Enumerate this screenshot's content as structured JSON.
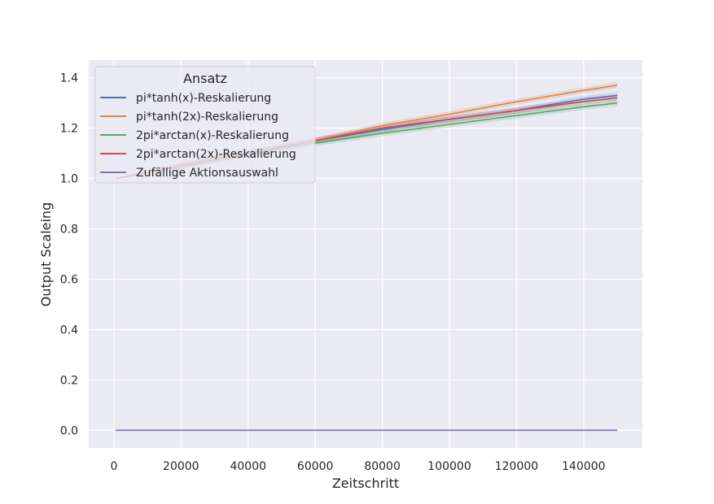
{
  "chart_data": {
    "type": "line",
    "title": "",
    "xlabel": "Zeitschritt",
    "ylabel": "Output Scaleing",
    "xlim": [
      -7500,
      157500
    ],
    "ylim": [
      -0.07,
      1.47
    ],
    "xticks": [
      0,
      20000,
      40000,
      60000,
      80000,
      100000,
      120000,
      140000
    ],
    "yticks": [
      0.0,
      0.2,
      0.4,
      0.6,
      0.8,
      1.0,
      1.2,
      1.4
    ],
    "xtick_labels": [
      "0",
      "20000",
      "40000",
      "60000",
      "80000",
      "100000",
      "120000",
      "140000"
    ],
    "ytick_labels": [
      "0.0",
      "0.2",
      "0.4",
      "0.6",
      "0.8",
      "1.0",
      "1.2",
      "1.4"
    ],
    "grid": true,
    "legend": {
      "title": "Ansatz",
      "position": "top-left"
    },
    "x": [
      500,
      20000,
      40000,
      60000,
      80000,
      100000,
      120000,
      140000,
      150000
    ],
    "series": [
      {
        "name": "pi*tanh(x)-Reskalierung",
        "color": "#4c72b0",
        "values": [
          1.0,
          1.05,
          1.1,
          1.15,
          1.195,
          1.235,
          1.27,
          1.315,
          1.33
        ],
        "band": 0.012
      },
      {
        "name": "pi*tanh(2x)-Reskalierung",
        "color": "#dd8452",
        "values": [
          1.0,
          1.05,
          1.1,
          1.15,
          1.21,
          1.255,
          1.305,
          1.35,
          1.37
        ],
        "band": 0.012
      },
      {
        "name": "2pi*arctan(x)-Reskalierung",
        "color": "#55a868",
        "values": [
          1.0,
          1.05,
          1.1,
          1.14,
          1.18,
          1.215,
          1.25,
          1.285,
          1.3
        ],
        "band": 0.012
      },
      {
        "name": "2pi*arctan(2x)-Reskalierung",
        "color": "#c44e52",
        "values": [
          1.0,
          1.05,
          1.1,
          1.15,
          1.2,
          1.235,
          1.27,
          1.305,
          1.32
        ],
        "band": 0.012
      },
      {
        "name": "Zufällige Aktionsauswahl",
        "color": "#8172b3",
        "values": [
          0.0,
          0.0,
          0.0,
          0.0,
          0.0,
          0.0,
          0.0,
          0.0,
          0.0
        ],
        "band": 0.0
      }
    ]
  }
}
